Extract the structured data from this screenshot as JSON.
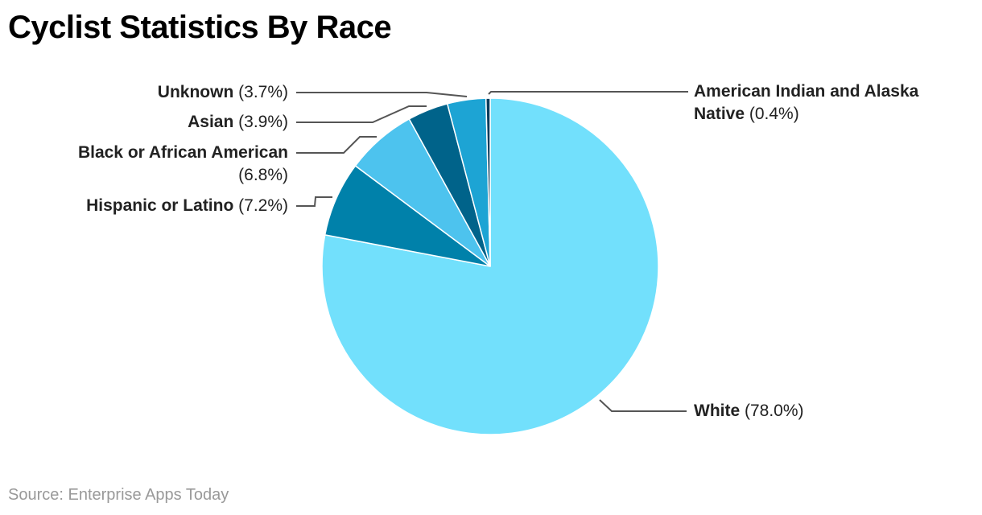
{
  "chart_data": {
    "type": "pie",
    "title": "Cyclist Statistics By Race",
    "slices": [
      {
        "label": "White",
        "value": 78.0,
        "display": "(78.0%)",
        "color": "#72E0FC"
      },
      {
        "label": "Hispanic or Latino",
        "value": 7.2,
        "display": "(7.2%)",
        "color": "#0081AA"
      },
      {
        "label": "Black or African American",
        "value": 6.8,
        "display": "(6.8%)",
        "color": "#4DC3EE"
      },
      {
        "label": "Asian",
        "value": 3.9,
        "display": "(3.9%)",
        "color": "#00638A"
      },
      {
        "label": "Unknown",
        "value": 3.7,
        "display": "(3.7%)",
        "color": "#1DA4D4"
      },
      {
        "label": "American Indian and Alaska Native",
        "value": 0.4,
        "display": "(0.4%)",
        "color": "#0B3B5B"
      }
    ],
    "start_angle": "top",
    "direction": "clockwise",
    "legend": "none"
  },
  "source": "Source: Enterprise Apps Today"
}
